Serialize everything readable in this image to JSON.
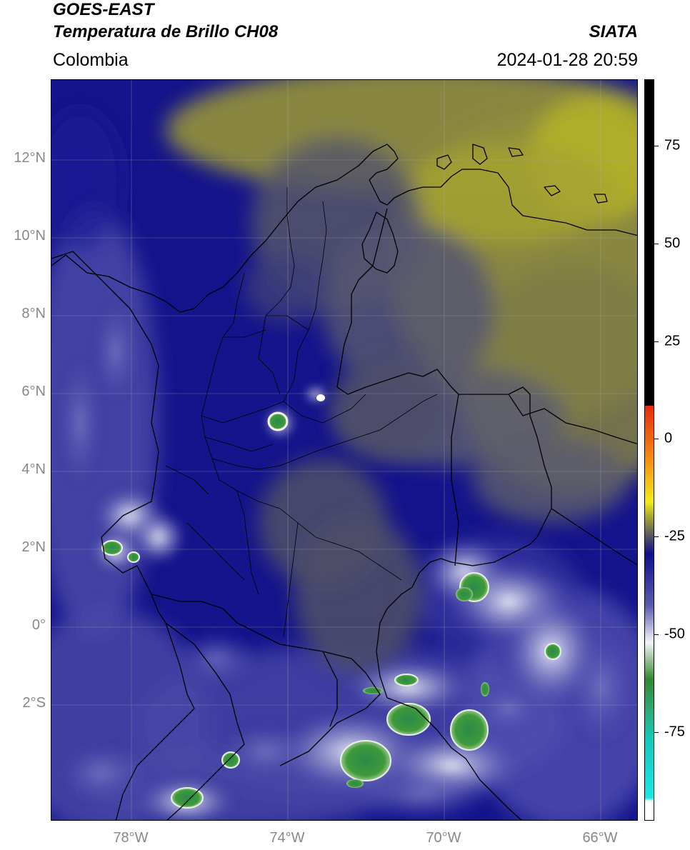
{
  "header": {
    "satellite": "GOES-EAST",
    "product": "Temperatura de Brillo CH08",
    "region": "Colombia",
    "brand": "SIATA",
    "timestamp": "2024-01-28 20:59"
  },
  "map": {
    "lat_labels": [
      {
        "value": 12,
        "label": "12°N"
      },
      {
        "value": 10,
        "label": "10°N"
      },
      {
        "value": 8,
        "label": "8°N"
      },
      {
        "value": 6,
        "label": "6°N"
      },
      {
        "value": 4,
        "label": "4°N"
      },
      {
        "value": 2,
        "label": "2°N"
      },
      {
        "value": 0,
        "label": "0°"
      },
      {
        "value": -2,
        "label": "2°S"
      }
    ],
    "lon_labels": [
      {
        "value": -78,
        "label": "78°W"
      },
      {
        "value": -74,
        "label": "74°W"
      },
      {
        "value": -70,
        "label": "70°W"
      },
      {
        "value": -66,
        "label": "66°W"
      }
    ],
    "lon_range": [
      -80,
      -65
    ],
    "lat_range": [
      -5,
      14
    ],
    "gridlines": true
  },
  "colorbar": {
    "ticks": [
      {
        "value": 75,
        "label": "75"
      },
      {
        "value": 50,
        "label": "50"
      },
      {
        "value": 25,
        "label": "25"
      },
      {
        "value": 0,
        "label": "0"
      },
      {
        "value": -25,
        "label": "-25"
      },
      {
        "value": -50,
        "label": "-50"
      },
      {
        "value": -75,
        "label": "-75"
      }
    ],
    "range": [
      -95,
      90
    ],
    "colors": {
      "black": "#000000",
      "red": "#e62a0c",
      "orange": "#f59a10",
      "yellow": "#f2ec14",
      "olive": "#a8a630",
      "gray": "#4a4a6a",
      "navy": "#0f0f8c",
      "light": "#f4f4f8",
      "green": "#2e8a2e",
      "teal": "#14c8b8",
      "cyan": "#18e8e8",
      "white": "#ffffff"
    }
  }
}
